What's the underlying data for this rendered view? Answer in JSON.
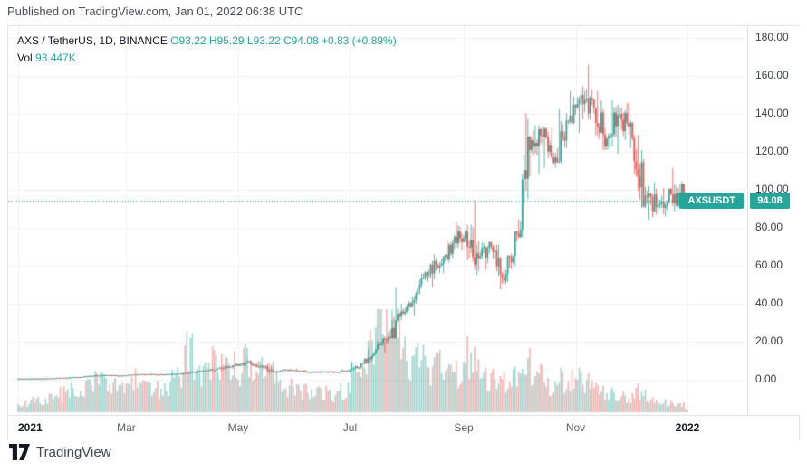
{
  "page": {
    "publish_caption": "Published on TradingView.com, Jan 01, 2022 06:38 UTC",
    "footer_brand": "TradingView"
  },
  "legend": {
    "title": "AXS / TetherUS, 1D, BINANCE",
    "ohlc_text": "O93.22  H95.29  L93.22  C94.08  +0.83 (+0.89%)",
    "vol_label": "Vol",
    "vol_value": "93.447K"
  },
  "price_badge": {
    "symbol": "AXSUSDT",
    "price": "94.08"
  },
  "colors": {
    "up": "#26a69a",
    "down": "#ef5350",
    "vol_up": "rgba(38,166,154,0.45)",
    "vol_down": "rgba(239,83,80,0.45)",
    "grid": "#f0f1f3",
    "border": "#e0e3eb",
    "badge": "#26a69a",
    "dotted_line": "#26a69a",
    "axis_text": "#3c4049",
    "title_text": "#131722",
    "value_text": "#26a69a"
  },
  "chart_data": {
    "type": "candlestick",
    "title": "AXS / TetherUS, 1D, BINANCE",
    "symbol": "AXS/USDT",
    "exchange": "BINANCE",
    "interval": "1D",
    "legend_note": "volume pane overlaid at bottom, grid on, price scale right",
    "last_ohlc": {
      "open": 93.22,
      "high": 95.29,
      "low": 93.22,
      "close": 94.08,
      "change": 0.83,
      "change_pct": 0.89
    },
    "last_price": 94.08,
    "prev_close": 93.25,
    "last_volume_display": "93.447K",
    "y_range": [
      0,
      180
    ],
    "y_ticks": [
      180,
      160,
      140,
      120,
      100,
      80,
      60,
      40,
      20,
      0
    ],
    "x_ticks": [
      {
        "d": 0,
        "label": "2021",
        "year": true
      },
      {
        "d": 59,
        "label": "Mar"
      },
      {
        "d": 120,
        "label": "May"
      },
      {
        "d": 181,
        "label": "Jul"
      },
      {
        "d": 243,
        "label": "Sep"
      },
      {
        "d": 304,
        "label": "Nov"
      },
      {
        "d": 365,
        "label": "2022",
        "year": true
      }
    ],
    "volume_unit": "K",
    "seed": 7,
    "weekly_ohlcv_note": "[open, high, low, close, avg daily volume in K, optional n-days (default 7)] — weekly estimates read off the chart, Jan 2021 → Jan 1 2022",
    "weekly_ohlcv": [
      [
        0.55,
        0.62,
        0.5,
        0.58,
        400
      ],
      [
        0.58,
        0.72,
        0.52,
        0.65,
        550
      ],
      [
        0.65,
        0.85,
        0.6,
        0.78,
        650
      ],
      [
        0.78,
        1.25,
        0.7,
        1.1,
        900
      ],
      [
        1.1,
        1.6,
        0.95,
        1.45,
        1100
      ],
      [
        1.45,
        2.3,
        1.3,
        2.05,
        1300
      ],
      [
        2.05,
        2.9,
        1.8,
        2.4,
        1500
      ],
      [
        2.4,
        2.6,
        1.7,
        2.1,
        1200
      ],
      [
        2.1,
        2.75,
        1.95,
        2.5,
        1400
      ],
      [
        2.5,
        3.1,
        2.2,
        2.8,
        1600
      ],
      [
        2.8,
        3.2,
        2.4,
        2.65,
        1300
      ],
      [
        2.65,
        3.0,
        2.3,
        2.85,
        1200
      ],
      [
        2.85,
        3.6,
        2.6,
        3.3,
        1900
      ],
      [
        3.3,
        4.4,
        3.0,
        4.1,
        2800
      ],
      [
        4.1,
        5.2,
        3.8,
        4.9,
        2000
      ],
      [
        4.9,
        6.5,
        4.5,
        6.1,
        2400
      ],
      [
        6.1,
        7.8,
        5.6,
        7.4,
        2200
      ],
      [
        7.4,
        10.5,
        7.0,
        9.2,
        2400
      ],
      [
        9.2,
        9.8,
        6.5,
        7.1,
        2100
      ],
      [
        7.1,
        7.5,
        2.9,
        4.2,
        2000
      ],
      [
        4.2,
        5.6,
        3.4,
        5.1,
        1400
      ],
      [
        5.1,
        5.9,
        4.3,
        4.7,
        1200
      ],
      [
        4.7,
        5.1,
        3.6,
        4.0,
        1000
      ],
      [
        4.0,
        4.6,
        3.4,
        4.3,
        950
      ],
      [
        4.3,
        4.5,
        3.2,
        3.9,
        900
      ],
      [
        3.9,
        5.4,
        3.7,
        5.1,
        1100
      ],
      [
        5.1,
        8.8,
        4.9,
        8.4,
        1900
      ],
      [
        8.4,
        16.5,
        8.1,
        15.8,
        3400
      ],
      [
        15.8,
        24.0,
        14.2,
        22.5,
        4600
      ],
      [
        22.5,
        48.4,
        21.8,
        36.0,
        4300
      ],
      [
        36.0,
        44.0,
        33.5,
        42.0,
        2600
      ],
      [
        42.0,
        57.0,
        40.0,
        55.0,
        2400
      ],
      [
        55.0,
        66.0,
        48.5,
        60.0,
        2200
      ],
      [
        60.0,
        74.0,
        56.0,
        72.0,
        2000
      ],
      [
        72.0,
        83.0,
        68.0,
        78.0,
        1900
      ],
      [
        78.0,
        94.6,
        55.0,
        64.0,
        2800
      ],
      [
        64.0,
        72.5,
        58.0,
        70.0,
        1600
      ],
      [
        70.0,
        71.0,
        47.5,
        52.0,
        1800
      ],
      [
        52.0,
        78.0,
        50.5,
        77.0,
        1700
      ],
      [
        77.0,
        140.5,
        75.0,
        121.0,
        2600
      ],
      [
        121.0,
        134.0,
        108.0,
        128.0,
        1900
      ],
      [
        128.0,
        133.0,
        111.5,
        117.0,
        1500
      ],
      [
        117.0,
        142.5,
        114.0,
        136.0,
        1600
      ],
      [
        136.0,
        152.0,
        130.0,
        150.0,
        1800
      ],
      [
        150.0,
        166.0,
        137.0,
        143.0,
        1400
      ],
      [
        143.0,
        152.0,
        121.0,
        127.0,
        1100
      ],
      [
        127.0,
        147.0,
        119.0,
        140.0,
        900
      ],
      [
        140.0,
        146.0,
        122.0,
        127.0,
        800
      ],
      [
        127.0,
        129.0,
        90.5,
        97.0,
        1100
      ],
      [
        97.0,
        104.0,
        84.3,
        92.0,
        700
      ],
      [
        92.0,
        101.0,
        86.0,
        97.5,
        500
      ],
      [
        97.5,
        111.4,
        88.5,
        97.0,
        420
      ],
      [
        97.0,
        99.0,
        92.5,
        93.25,
        180,
        1
      ],
      [
        93.22,
        95.29,
        93.22,
        94.08,
        93.447,
        1
      ]
    ]
  }
}
